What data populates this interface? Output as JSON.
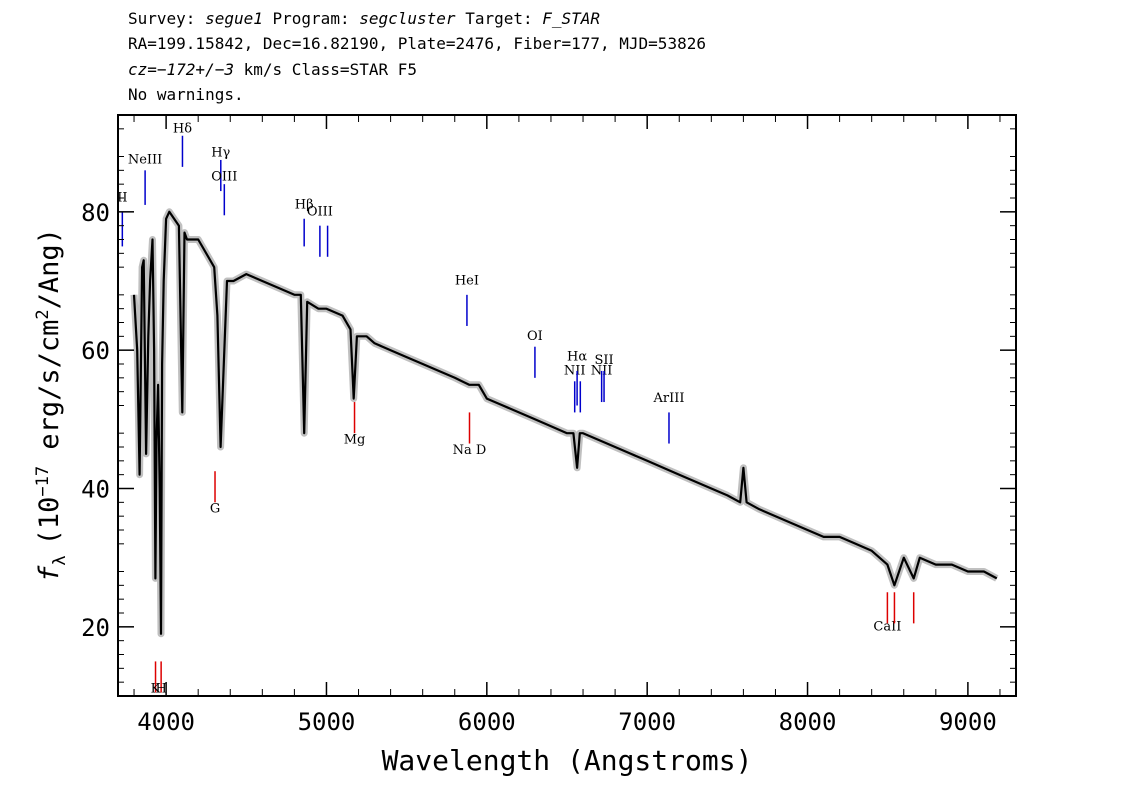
{
  "header": {
    "line1": {
      "survey_label": "Survey:",
      "survey": "segue1",
      "program_label": "Program:",
      "program": "segcluster",
      "target_label": "Target:",
      "target": "F_STAR"
    },
    "line2": "RA=199.15842, Dec=16.82190, Plate=2476, Fiber=177, MJD=53826",
    "line3": {
      "cz": "cz=−172+/−3",
      "rest": " km/s Class=STAR F5"
    },
    "line4": "No warnings."
  },
  "colors": {
    "flux": "#000000",
    "error": "#c0c0c0",
    "emission": "#0000cc",
    "absorption": "#dd0000"
  },
  "chart_data": {
    "type": "line",
    "xlabel": "Wavelength (Angstroms)",
    "ylabel_prefix": "f",
    "ylabel_sub": "λ",
    "ylabel_unit_pre": "(10",
    "ylabel_unit_exp": "−17",
    "ylabel_unit_mid": " erg/s/cm",
    "ylabel_unit_exp2": "2",
    "ylabel_unit_post": "/Ang)",
    "xlim": [
      3700,
      9300
    ],
    "ylim": [
      10,
      94
    ],
    "x_ticks": [
      4000,
      5000,
      6000,
      7000,
      8000,
      9000
    ],
    "x_tick_labels": [
      "4000",
      "5000",
      "6000",
      "7000",
      "8000",
      "9000"
    ],
    "y_ticks": [
      20,
      40,
      60,
      80
    ],
    "y_tick_labels": [
      "20",
      "40",
      "60",
      "80"
    ],
    "series": [
      {
        "x": [
          3800,
          3820,
          3835,
          3850,
          3860,
          3875,
          3889,
          3900,
          3915,
          3925,
          3933,
          3940,
          3950,
          3960,
          3968,
          3975,
          3985,
          4000,
          4020,
          4050,
          4080,
          4101,
          4115,
          4130,
          4160,
          4200,
          4250,
          4300,
          4320,
          4340,
          4360,
          4380,
          4420,
          4500,
          4600,
          4700,
          4800,
          4840,
          4861,
          4880,
          4950,
          5000,
          5100,
          5150,
          5170,
          5190,
          5250,
          5300,
          5400,
          5500,
          5600,
          5700,
          5800,
          5890,
          5950,
          6000,
          6100,
          6200,
          6300,
          6400,
          6500,
          6540,
          6563,
          6580,
          6600,
          6700,
          6800,
          6900,
          7000,
          7100,
          7200,
          7300,
          7400,
          7500,
          7580,
          7600,
          7620,
          7700,
          7800,
          7900,
          8000,
          8100,
          8200,
          8300,
          8400,
          8498,
          8542,
          8600,
          8662,
          8700,
          8800,
          8900,
          9000,
          9100,
          9180
        ],
        "y": [
          68,
          60,
          42,
          72,
          73,
          45,
          62,
          70,
          76,
          60,
          27,
          47,
          55,
          40,
          19,
          58,
          70,
          79,
          80,
          79,
          78,
          51,
          77,
          76,
          76,
          76,
          74,
          72,
          65,
          46,
          58,
          70,
          70,
          71,
          70,
          69,
          68,
          68,
          48,
          67,
          66,
          66,
          65,
          63,
          53,
          62,
          62,
          61,
          60,
          59,
          58,
          57,
          56,
          55,
          55,
          53,
          52,
          51,
          50,
          49,
          48,
          48,
          43,
          48,
          48,
          47,
          46,
          45,
          44,
          43,
          42,
          41,
          40,
          39,
          38,
          43,
          38,
          37,
          36,
          35,
          34,
          33,
          33,
          32,
          31,
          29,
          26,
          30,
          27,
          30,
          29,
          29,
          28,
          28,
          27
        ]
      }
    ],
    "annotations": {
      "emission": [
        {
          "label": "II",
          "x": 3727,
          "label_y": 81.5,
          "y1": 80,
          "y2": 75
        },
        {
          "label": "NeIII",
          "x": 3869,
          "label_y": 87,
          "y1": 86,
          "y2": 81
        },
        {
          "label": "Hδ",
          "x": 4102,
          "label_y": 91.5,
          "y1": 91,
          "y2": 86.5
        },
        {
          "label": "Hγ",
          "x": 4341,
          "label_y": 88,
          "y1": 87.5,
          "y2": 83
        },
        {
          "label": "OIII",
          "x": 4363,
          "label_y": 84.5,
          "y1": 84,
          "y2": 79.5
        },
        {
          "label": "Hβ",
          "x": 4861,
          "label_y": 80.5,
          "y1": 79,
          "y2": 75
        },
        {
          "label": "OIII",
          "x": 4959,
          "label_y": 79.5,
          "y1": 78,
          "y2": 73.5
        },
        {
          "label": "",
          "x": 5007,
          "label_y": 0,
          "y1": 78,
          "y2": 73.5
        },
        {
          "label": "HeI",
          "x": 5876,
          "label_y": 69.5,
          "y1": 68,
          "y2": 63.5
        },
        {
          "label": "OI",
          "x": 6300,
          "label_y": 61.5,
          "y1": 60.5,
          "y2": 56
        },
        {
          "label": "NII",
          "x": 6548,
          "label_y": 56.5,
          "y1": 55.5,
          "y2": 51
        },
        {
          "label": "Hα",
          "x": 6563,
          "label_y": 58.5,
          "y1": 57,
          "y2": 52
        },
        {
          "label": "",
          "x": 6583,
          "label_y": 0,
          "y1": 55.5,
          "y2": 51
        },
        {
          "label": "NII",
          "x": 6716,
          "label_y": 56.5,
          "y1": 57,
          "y2": 52.5
        },
        {
          "label": "SII",
          "x": 6731,
          "label_y": 58,
          "y1": 57,
          "y2": 52.5
        },
        {
          "label": "ArIII",
          "x": 7136,
          "label_y": 52.5,
          "y1": 51,
          "y2": 46.5
        }
      ],
      "absorption": [
        {
          "label": "K",
          "x": 3934,
          "label_y": 10.5,
          "y1": 15,
          "y2": 10.5
        },
        {
          "label": "H",
          "x": 3969,
          "label_y": 10.5,
          "y1": 15,
          "y2": 10.5
        },
        {
          "label": "G",
          "x": 4305,
          "label_y": 36.5,
          "y1": 42.5,
          "y2": 38
        },
        {
          "label": "Mg",
          "x": 5175,
          "label_y": 46.5,
          "y1": 52.5,
          "y2": 48
        },
        {
          "label": "Na D",
          "x": 5892,
          "label_y": 45,
          "y1": 51,
          "y2": 46.5
        },
        {
          "label": "CaII",
          "x": 8498,
          "label_y": 19.5,
          "y1": 25,
          "y2": 20.5
        },
        {
          "label": "",
          "x": 8542,
          "label_y": 0,
          "y1": 25,
          "y2": 20.5
        },
        {
          "label": "",
          "x": 8662,
          "label_y": 0,
          "y1": 25,
          "y2": 20.5
        }
      ]
    }
  }
}
